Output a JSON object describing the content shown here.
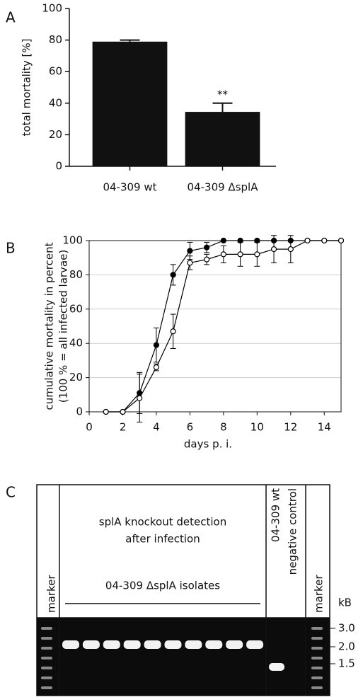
{
  "chart_data": [
    {
      "type": "bar",
      "panel_label": "A",
      "ylabel": "total mortality [%]",
      "categories": [
        "04-309 wt",
        "04-309 ΔsplA"
      ],
      "values": [
        79,
        34.5
      ],
      "errors": [
        1,
        5.5
      ],
      "annotations": [
        "",
        "**"
      ],
      "color": "#111111",
      "ylim": [
        0,
        100
      ],
      "yticks": [
        0,
        20,
        40,
        60,
        80,
        100
      ]
    },
    {
      "type": "line",
      "panel_label": "B",
      "ylabel": [
        "cumulative mortality in percent",
        "(100 % = all infected larvae)"
      ],
      "xlabel": "days p. i.",
      "x": [
        1,
        2,
        3,
        4,
        5,
        6,
        7,
        8,
        9,
        10,
        11,
        12,
        13,
        14,
        15
      ],
      "series": [
        {
          "color": "#000000",
          "marker": "filled",
          "values": [
            0,
            0,
            11,
            39,
            80,
            94,
            96,
            100,
            100,
            100,
            100,
            100,
            100,
            100,
            100
          ],
          "errors": [
            0,
            0,
            12,
            10,
            6,
            5,
            3,
            0,
            0,
            0,
            0,
            0,
            0,
            0,
            0
          ]
        },
        {
          "color": "#000000",
          "marker": "open",
          "values": [
            0,
            0,
            8,
            26,
            47,
            87,
            89,
            92,
            92,
            92,
            95,
            95,
            100,
            100,
            100
          ],
          "errors": [
            0,
            0,
            14,
            2,
            10,
            4,
            3,
            5,
            7,
            7,
            8,
            8,
            0,
            0,
            0
          ]
        }
      ],
      "xlim": [
        0,
        15
      ],
      "xticks": [
        0,
        2,
        4,
        6,
        8,
        10,
        12,
        14
      ],
      "ylim": [
        0,
        100
      ],
      "yticks": [
        0,
        20,
        40,
        60,
        80,
        100
      ],
      "grid": true
    }
  ],
  "gel": {
    "panel_label": "C",
    "lanes_left": "marker",
    "header": [
      "splA knockout detection",
      "after infection"
    ],
    "group_label": "04-309 ΔsplA isolates",
    "lane_wt": "04-309 wt",
    "lane_neg": "negative control",
    "lanes_right": "marker",
    "unit": "kB",
    "sizes": [
      "3.0",
      "2.0",
      "1.5"
    ]
  }
}
